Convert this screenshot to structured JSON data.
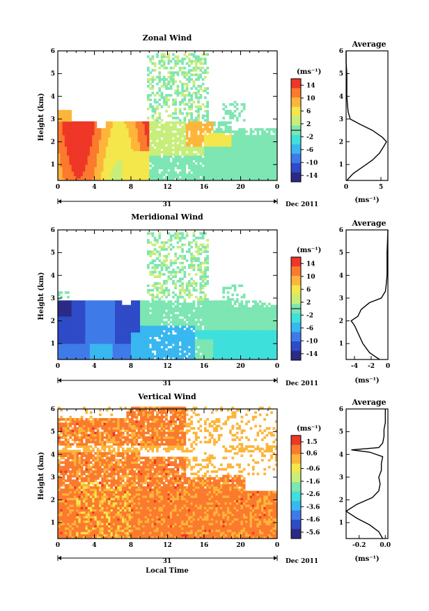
{
  "chart_data": [
    {
      "type": "heatmap",
      "title": "Zonal Wind",
      "ylabel": "Height (km)",
      "unit_label": "(ms⁻¹)",
      "x_ticks": [
        "0",
        "4",
        "8",
        "12",
        "16",
        "20",
        "0"
      ],
      "y_ticks": [
        "1",
        "2",
        "3",
        "4",
        "5",
        "6"
      ],
      "xlim": [
        0,
        24
      ],
      "ylim": [
        0.3,
        6
      ],
      "date_day": "31",
      "date_label": "Dec 2011",
      "colorbar_ticks": [
        "14",
        "10",
        "6",
        "2",
        "-2",
        "-6",
        "-10",
        "-14"
      ],
      "colorbar_range": [
        -16,
        16
      ],
      "colorbar_colors": [
        "#2b2a87",
        "#2f4bc7",
        "#3f7be8",
        "#39b7f0",
        "#3fe0dc",
        "#7de6b2",
        "#c7ee7a",
        "#f4e74c",
        "#fdb53a",
        "#fb7a2e",
        "#ee3726"
      ],
      "profile": {
        "title": "Average",
        "x_ticks": [
          "0",
          "5"
        ],
        "xlim": [
          0,
          6
        ],
        "xlabel": "(ms⁻¹)",
        "heights": [
          0.3,
          0.6,
          0.9,
          1.2,
          1.5,
          1.8,
          2.0,
          2.2,
          2.5,
          2.8,
          3.0,
          3.3,
          3.6,
          4.0,
          4.5,
          5.0,
          5.5,
          6.0
        ],
        "values": [
          0.1,
          1.0,
          2.4,
          3.8,
          4.8,
          5.4,
          5.8,
          5.2,
          3.8,
          1.8,
          0.6,
          0.3,
          0.2,
          0.1,
          0.1,
          0.1,
          0.0,
          0.0
        ]
      }
    },
    {
      "type": "heatmap",
      "title": "Meridional Wind",
      "ylabel": "Height (km)",
      "unit_label": "(ms⁻¹)",
      "x_ticks": [
        "0",
        "4",
        "8",
        "12",
        "16",
        "20",
        "0"
      ],
      "y_ticks": [
        "1",
        "2",
        "3",
        "4",
        "5",
        "6"
      ],
      "xlim": [
        0,
        24
      ],
      "ylim": [
        0.3,
        6
      ],
      "date_day": "31",
      "date_label": "Dec 2011",
      "colorbar_ticks": [
        "14",
        "10",
        "6",
        "2",
        "-2",
        "-6",
        "-10",
        "-14"
      ],
      "colorbar_range": [
        -16,
        16
      ],
      "colorbar_colors": [
        "#2b2a87",
        "#2f4bc7",
        "#3f7be8",
        "#39b7f0",
        "#3fe0dc",
        "#7de6b2",
        "#c7ee7a",
        "#f4e74c",
        "#fdb53a",
        "#fb7a2e",
        "#ee3726"
      ],
      "profile": {
        "title": "Average",
        "x_ticks": [
          "-4",
          "-2",
          "0"
        ],
        "xlim": [
          -5,
          0
        ],
        "xlabel": "(ms⁻¹)",
        "heights": [
          0.3,
          0.6,
          1.0,
          1.4,
          1.8,
          2.0,
          2.2,
          2.5,
          2.8,
          3.0,
          3.3,
          3.6,
          4.0,
          4.5,
          5.0,
          5.5,
          6.0
        ],
        "values": [
          -1.0,
          -2.2,
          -3.0,
          -3.5,
          -4.0,
          -4.4,
          -3.6,
          -3.2,
          -2.2,
          -0.8,
          -0.3,
          -0.2,
          -0.1,
          -0.1,
          -0.1,
          -0.05,
          0.0
        ]
      }
    },
    {
      "type": "heatmap",
      "title": "Vertical Wind",
      "ylabel": "Height (km)",
      "xlabel": "Local Time",
      "unit_label": "(ms⁻¹)",
      "x_ticks": [
        "0",
        "4",
        "8",
        "12",
        "16",
        "20",
        "0"
      ],
      "y_ticks": [
        "1",
        "2",
        "3",
        "4",
        "5",
        "6"
      ],
      "xlim": [
        0,
        24
      ],
      "ylim": [
        0.3,
        6
      ],
      "date_day": "31",
      "date_label": "Dec 2011",
      "colorbar_ticks": [
        "1.5",
        "0.6",
        "-0.6",
        "-1.6",
        "-2.6",
        "-3.6",
        "-4.6",
        "-5.6"
      ],
      "colorbar_range": [
        -6.1,
        2.0
      ],
      "colorbar_colors": [
        "#2b2a87",
        "#2f4bc7",
        "#3f7be8",
        "#39b7f0",
        "#3fe0dc",
        "#7de6b2",
        "#c7ee7a",
        "#f4e74c",
        "#fdb53a",
        "#fb7a2e",
        "#ee3726"
      ],
      "profile": {
        "title": "Average",
        "x_ticks": [
          "-0.2",
          "0.0"
        ],
        "xlim": [
          -0.3,
          0.02
        ],
        "xlabel": "(ms⁻¹)",
        "heights": [
          0.3,
          0.6,
          0.9,
          1.2,
          1.5,
          1.8,
          2.1,
          2.4,
          2.7,
          3.0,
          3.3,
          3.6,
          3.9,
          4.1,
          4.2,
          4.3,
          4.5,
          4.8,
          5.1,
          5.4,
          5.7,
          6.0
        ],
        "values": [
          -0.02,
          -0.05,
          -0.12,
          -0.22,
          -0.3,
          -0.22,
          -0.1,
          -0.05,
          -0.04,
          -0.05,
          -0.03,
          -0.03,
          -0.02,
          -0.12,
          -0.26,
          -0.05,
          -0.02,
          -0.01,
          -0.01,
          0.0,
          0.0,
          0.0
        ]
      }
    }
  ]
}
